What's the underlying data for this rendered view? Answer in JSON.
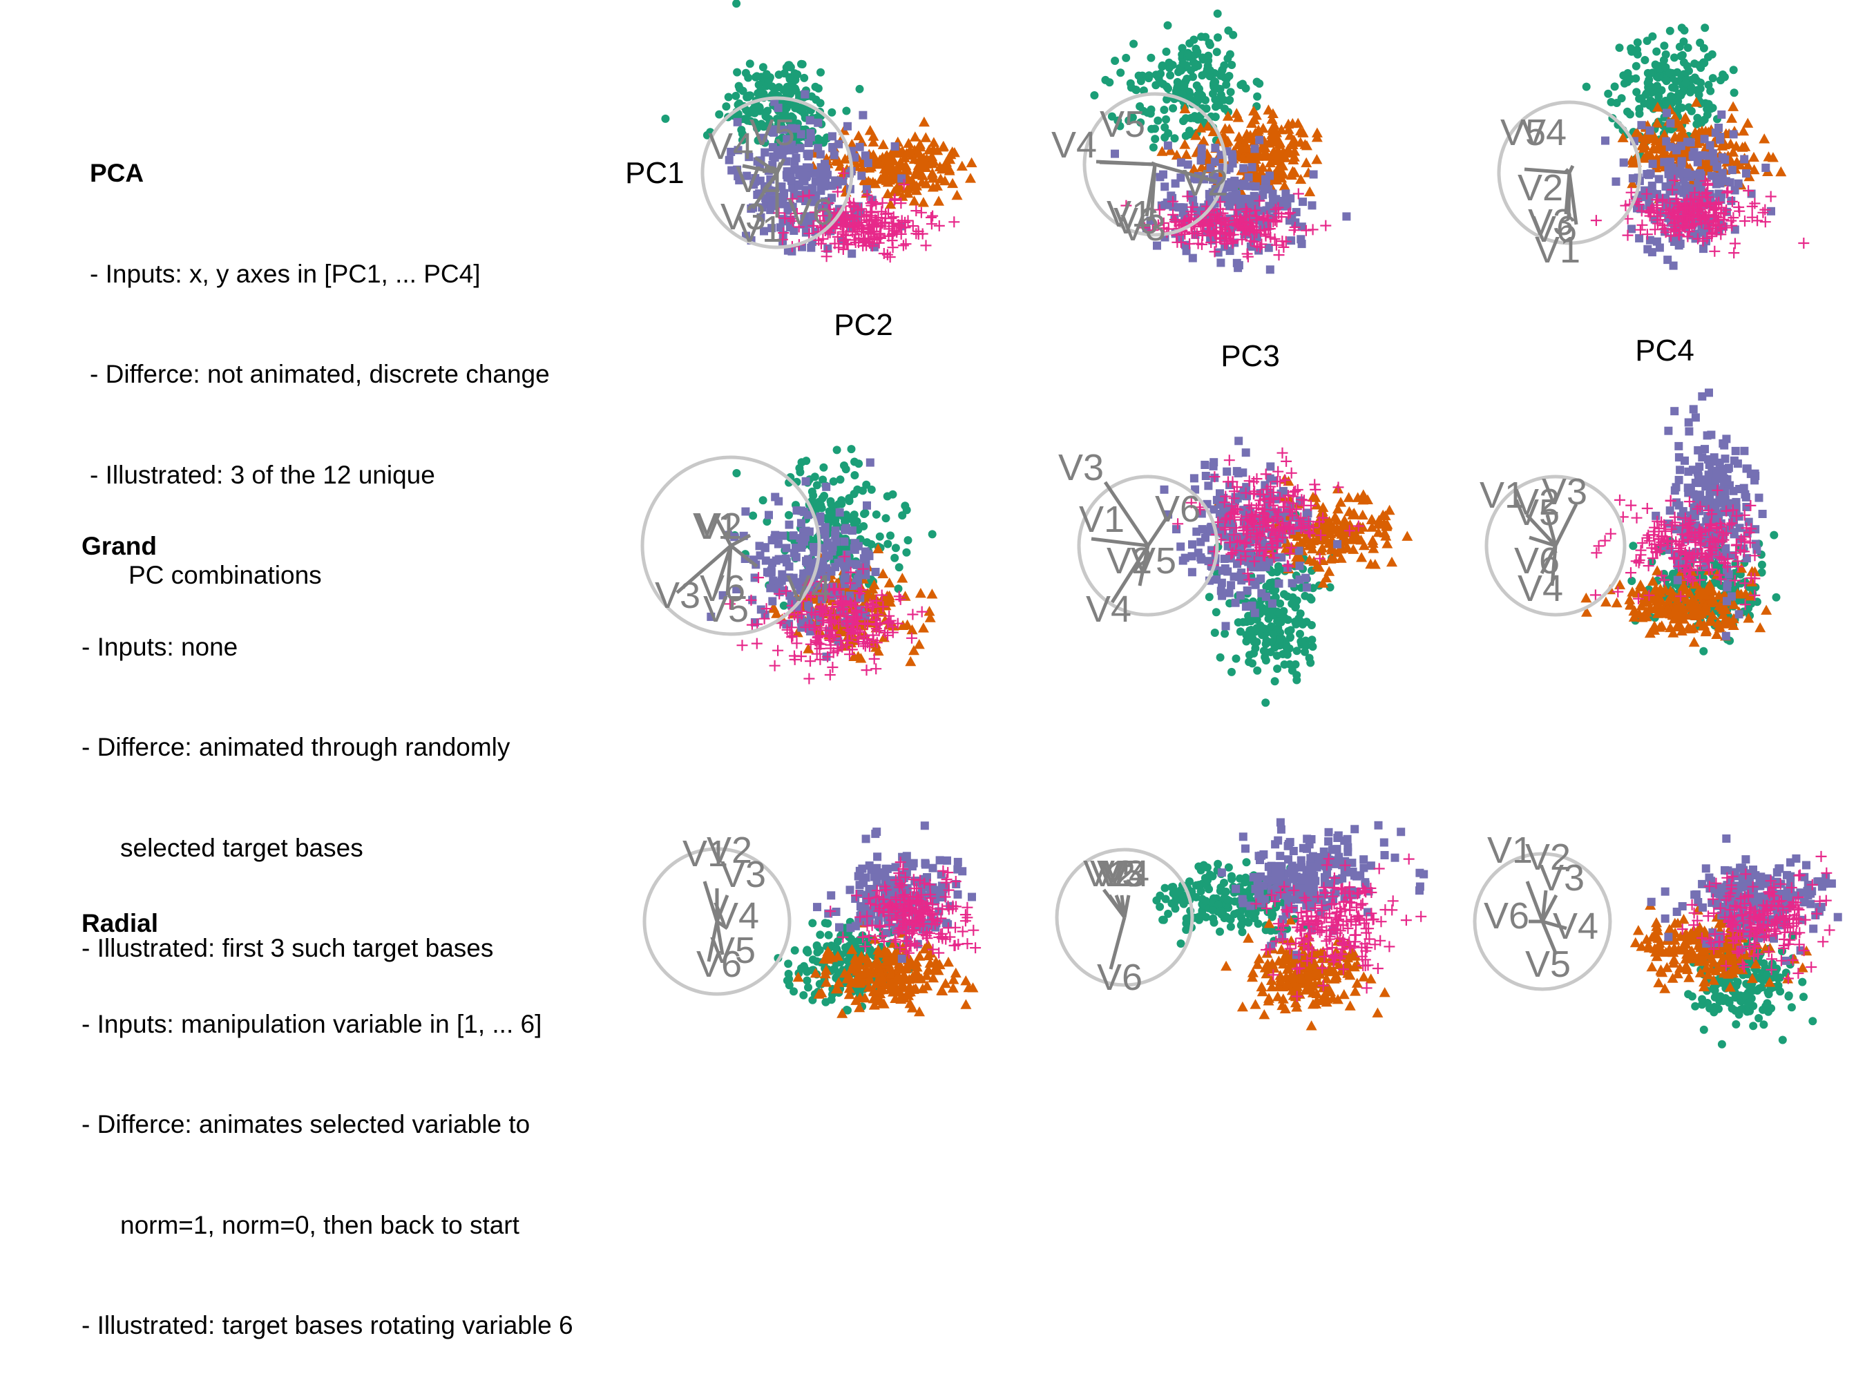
{
  "colors": {
    "green": "#1b9e77",
    "orange": "#d95f02",
    "purple": "#7570b3",
    "pink": "#e7298a",
    "axis": "#808080",
    "circle": "#c8c8c8"
  },
  "rows": [
    {
      "title": "PCA",
      "lines": [
        "- Inputs: x, y axes in [PC1, ... PC4]",
        "- Differce: not animated, discrete change",
        "- Illustrated: 3 of the 12 unique",
        "PC combinations"
      ],
      "panels": [
        {
          "xlabel": "PC2",
          "ylabel": "PC1",
          "vars": [
            "V1",
            "V2",
            "V3",
            "V4",
            "V5",
            "V6"
          ]
        },
        {
          "xlabel": "PC3",
          "ylabel": "",
          "vars": [
            "V1",
            "V2",
            "V3",
            "V4",
            "V5",
            "V6"
          ]
        },
        {
          "xlabel": "PC4",
          "ylabel": "",
          "vars": [
            "V1",
            "V2",
            "V3",
            "V4",
            "V5",
            "V6"
          ]
        }
      ]
    },
    {
      "title": "Grand",
      "lines": [
        "- Inputs: none",
        "- Differce: animated through randomly",
        "selected target bases",
        "- Illustrated: first 3 such target bases"
      ],
      "panels": [
        {
          "xlabel": "",
          "ylabel": "",
          "vars": [
            "V1",
            "V2",
            "V3",
            "V4",
            "V5",
            "V6"
          ]
        },
        {
          "xlabel": "",
          "ylabel": "",
          "vars": [
            "V1",
            "V2",
            "V3",
            "V4",
            "V5",
            "V6"
          ]
        },
        {
          "xlabel": "",
          "ylabel": "",
          "vars": [
            "V1",
            "V2",
            "V3",
            "V4",
            "V5",
            "V6"
          ]
        }
      ]
    },
    {
      "title": "Radial",
      "lines": [
        "- Inputs: manipulation variable in [1, ... 6]",
        "- Differce: animates selected variable to",
        "norm=1, norm=0, then back to start",
        "- Illustrated: target bases rotating variable 6"
      ],
      "panels": [
        {
          "xlabel": "",
          "ylabel": "",
          "vars": [
            "V1",
            "V2",
            "V3",
            "V4",
            "V5",
            "V6"
          ]
        },
        {
          "xlabel": "",
          "ylabel": "",
          "vars": [
            "V1",
            "V2",
            "V3",
            "V4",
            "V5",
            "V6"
          ]
        },
        {
          "xlabel": "",
          "ylabel": "",
          "vars": [
            "V1",
            "V2",
            "V3",
            "V4",
            "V5",
            "V6"
          ]
        }
      ]
    }
  ]
}
